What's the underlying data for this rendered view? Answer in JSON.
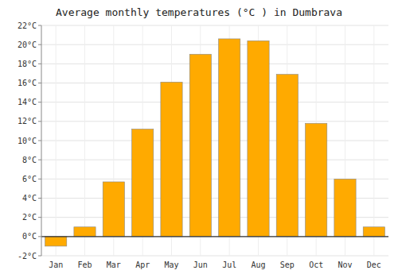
{
  "chart_data": {
    "type": "bar",
    "title": "Average monthly temperatures (°C ) in Dumbrava",
    "categories": [
      "Jan",
      "Feb",
      "Mar",
      "Apr",
      "May",
      "Jun",
      "Jul",
      "Aug",
      "Sep",
      "Oct",
      "Nov",
      "Dec"
    ],
    "values": [
      -1.0,
      1.0,
      5.7,
      11.2,
      16.1,
      19.0,
      20.6,
      20.4,
      16.9,
      11.8,
      6.0,
      1.0
    ],
    "color": "#FFAA00",
    "ylim": [
      -2,
      22
    ],
    "yticks": [
      {
        "value": -2,
        "label": "-2°C"
      },
      {
        "value": 0,
        "label": "0°C"
      },
      {
        "value": 2,
        "label": "2°C"
      },
      {
        "value": 4,
        "label": "4°C"
      },
      {
        "value": 6,
        "label": "6°C"
      },
      {
        "value": 8,
        "label": "8°C"
      },
      {
        "value": 10,
        "label": "10°C"
      },
      {
        "value": 12,
        "label": "12°C"
      },
      {
        "value": 14,
        "label": "14°C"
      },
      {
        "value": 16,
        "label": "16°C"
      },
      {
        "value": 18,
        "label": "18°C"
      },
      {
        "value": 20,
        "label": "20°C"
      },
      {
        "value": 22,
        "label": "22°C"
      }
    ],
    "grid": true
  }
}
